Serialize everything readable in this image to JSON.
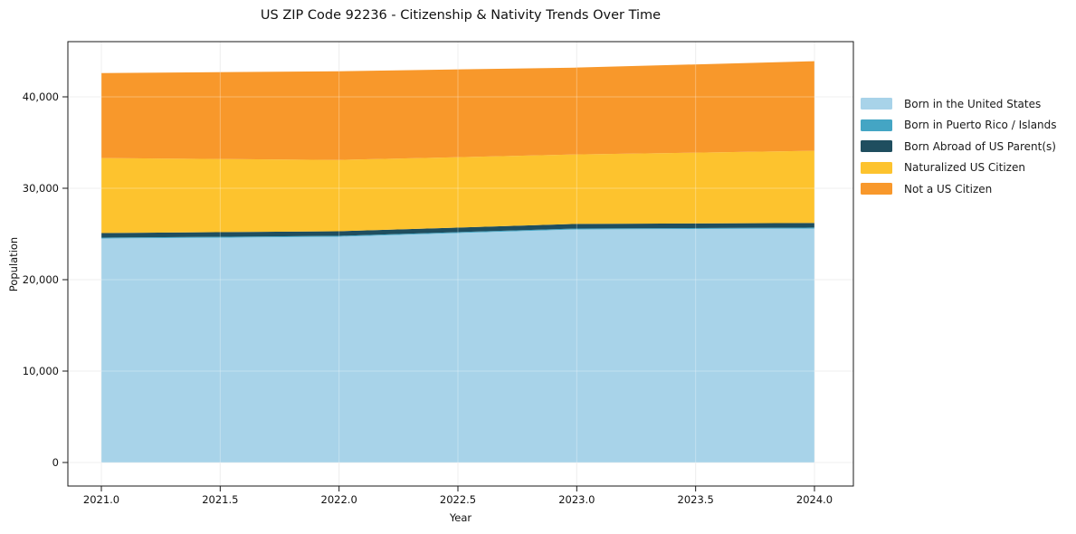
{
  "figure": {
    "background": "#ffffff"
  },
  "chart_data": {
    "type": "area",
    "stacked": true,
    "title": "US ZIP Code 92236 - Citizenship & Nativity Trends Over Time",
    "xlabel": "Year",
    "ylabel": "Population",
    "grid": true,
    "legend": {
      "position": "right-outside"
    },
    "x": [
      2021,
      2022,
      2023,
      2024
    ],
    "xlim": [
      2020.86,
      2024.16
    ],
    "ylim": [
      -2600,
      46100
    ],
    "x_ticks": {
      "values": [
        2021.0,
        2021.5,
        2022.0,
        2022.5,
        2023.0,
        2023.5,
        2024.0
      ],
      "labels": [
        "2021.0",
        "2021.5",
        "2022.0",
        "2022.5",
        "2023.0",
        "2023.5",
        "2024.0"
      ]
    },
    "y_ticks": {
      "values": [
        0,
        10000,
        20000,
        30000,
        40000
      ],
      "labels": [
        "0",
        "10,000",
        "20,000",
        "30,000",
        "40,000"
      ]
    },
    "series": [
      {
        "name": "Born in the United States",
        "color": "#a8d3e9",
        "values": [
          24500,
          24700,
          25500,
          25600
        ]
      },
      {
        "name": "Born in Puerto Rico / Islands",
        "color": "#44a5c4",
        "values": [
          100,
          100,
          100,
          100
        ]
      },
      {
        "name": "Born Abroad of US Parent(s)",
        "color": "#1f4e5f",
        "values": [
          500,
          500,
          500,
          500
        ]
      },
      {
        "name": "Naturalized US Citizen",
        "color": "#fdc32e",
        "values": [
          8200,
          7800,
          7600,
          7900
        ]
      },
      {
        "name": "Not a US Citizen",
        "color": "#f8982b",
        "values": [
          9300,
          9700,
          9500,
          9800
        ]
      }
    ],
    "stack_totals": [
      42600,
      42800,
      43200,
      43900
    ]
  }
}
